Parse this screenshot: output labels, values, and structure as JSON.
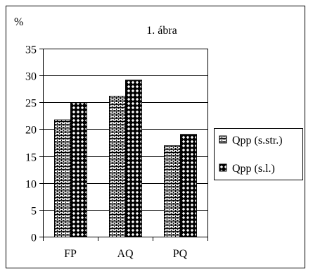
{
  "chart_data": {
    "type": "bar",
    "title": "1. ábra",
    "ylabel": "%",
    "xlabel": "",
    "categories": [
      "FP",
      "AQ",
      "PQ"
    ],
    "ylim": [
      0,
      35
    ],
    "yticks": [
      "0",
      "5",
      "10",
      "15",
      "20",
      "25",
      "30",
      "35"
    ],
    "grid": true,
    "legend_position": "right",
    "series": [
      {
        "name": "Qpp (s.str.)",
        "values": [
          21.8,
          26.2,
          17.0
        ],
        "pattern": "brick",
        "color": "#000000"
      },
      {
        "name": "Qpp (s.l.)",
        "values": [
          25.0,
          29.2,
          19.1
        ],
        "pattern": "diamond",
        "color": "#000000"
      }
    ]
  }
}
